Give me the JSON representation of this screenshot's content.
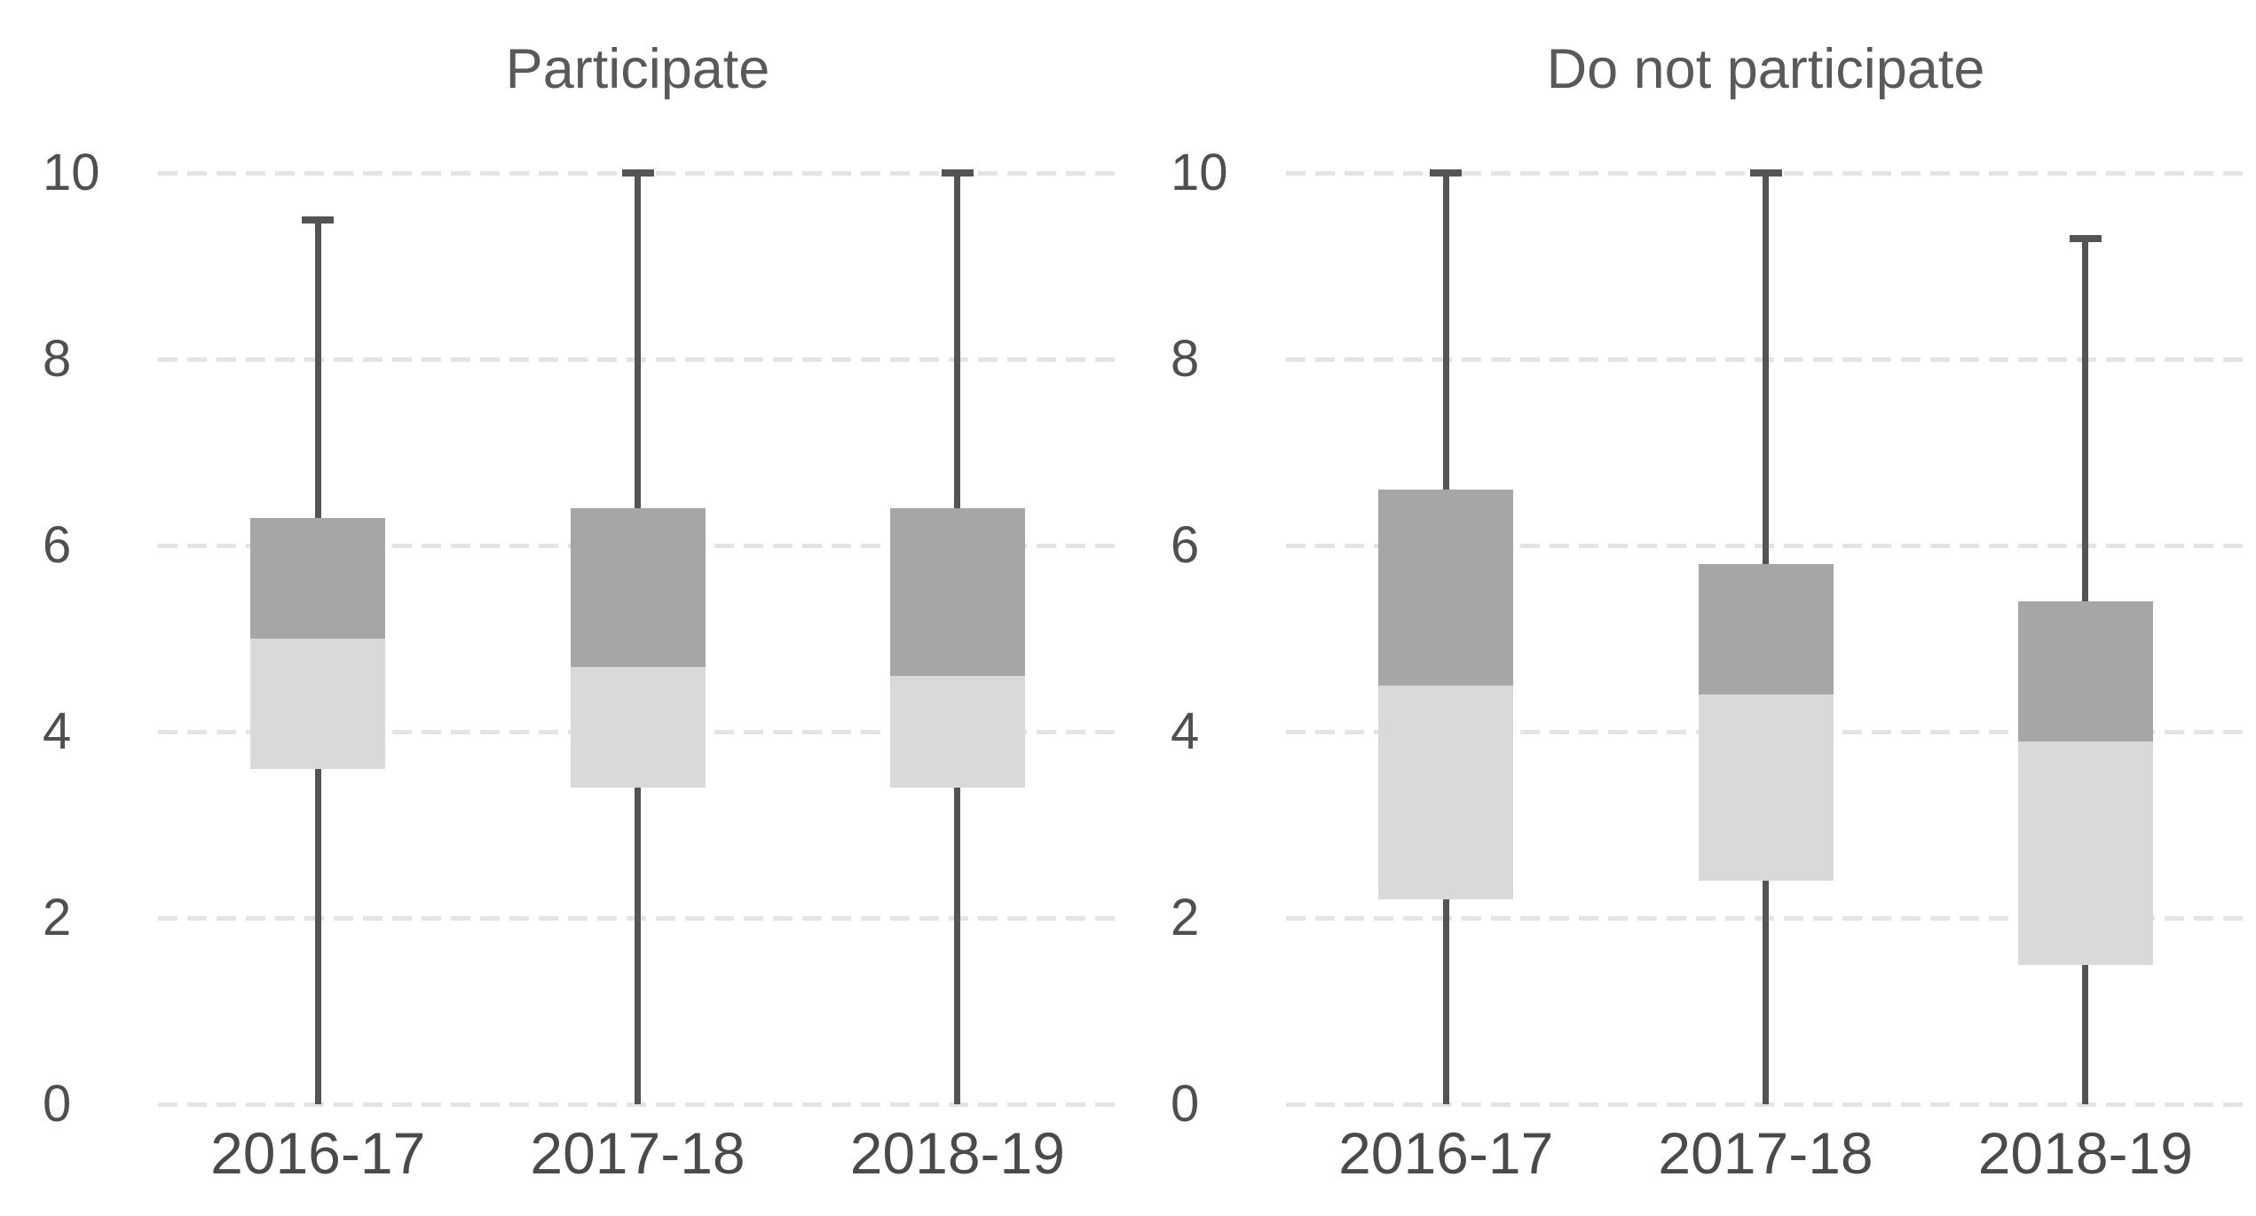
{
  "figure": {
    "background": "#ffffff",
    "titles": [
      "Participate",
      "Do not participate"
    ]
  },
  "style": {
    "box_upper_color": "#a6a6a6",
    "box_lower_color": "#d9d9d9",
    "whisker_color": "#545454",
    "gridline_color": "#e4e4e4",
    "tick_text_color": "#4f4f4f",
    "title_text_color": "#595959"
  },
  "chart_data": [
    {
      "type": "box",
      "title": "Participate",
      "xlabel": "",
      "ylabel": "",
      "ylim": [
        0,
        10
      ],
      "yticks": [
        "0",
        "2",
        "4",
        "6",
        "8",
        "10"
      ],
      "grid": "horizontal-dashed",
      "legend": "none",
      "categories": [
        "2016-17",
        "2017-18",
        "2018-19"
      ],
      "series": [
        {
          "category": "2016-17",
          "min": 0,
          "q1": 3.6,
          "median": 5.0,
          "q3": 6.3,
          "max": 9.5
        },
        {
          "category": "2017-18",
          "min": 0,
          "q1": 3.4,
          "median": 4.7,
          "q3": 6.4,
          "max": 10
        },
        {
          "category": "2018-19",
          "min": 0,
          "q1": 3.4,
          "median": 4.6,
          "q3": 6.4,
          "max": 10
        }
      ]
    },
    {
      "type": "box",
      "title": "Do not participate",
      "xlabel": "",
      "ylabel": "",
      "ylim": [
        0,
        10
      ],
      "yticks": [
        "0",
        "2",
        "4",
        "6",
        "8",
        "10"
      ],
      "grid": "horizontal-dashed",
      "legend": "none",
      "categories": [
        "2016-17",
        "2017-18",
        "2018-19"
      ],
      "series": [
        {
          "category": "2016-17",
          "min": 0,
          "q1": 2.2,
          "median": 4.5,
          "q3": 6.6,
          "max": 10
        },
        {
          "category": "2017-18",
          "min": 0,
          "q1": 2.4,
          "median": 4.4,
          "q3": 5.8,
          "max": 10
        },
        {
          "category": "2018-19",
          "min": 0,
          "q1": 1.5,
          "median": 3.9,
          "q3": 5.4,
          "max": 9.3
        }
      ]
    }
  ]
}
